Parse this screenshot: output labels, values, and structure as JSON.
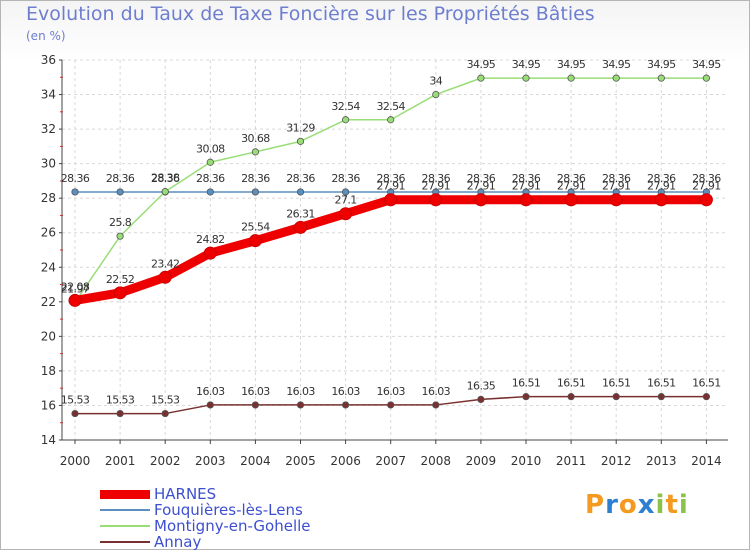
{
  "chart_data": {
    "type": "line",
    "title": "Evolution du Taux de Taxe Foncière sur les Propriétés Bâties",
    "subtitle": "(en %)",
    "x": [
      2000,
      2001,
      2002,
      2003,
      2004,
      2005,
      2006,
      2007,
      2008,
      2009,
      2010,
      2011,
      2012,
      2013,
      2014
    ],
    "ylim": [
      14,
      36
    ],
    "yticks": [
      14,
      16,
      18,
      20,
      22,
      24,
      26,
      28,
      30,
      32,
      34,
      36
    ],
    "series": [
      {
        "name": "HARNES",
        "color": "#ee0000",
        "values": [
          22.08,
          22.52,
          23.42,
          24.82,
          25.54,
          26.31,
          27.1,
          27.91,
          27.91,
          27.91,
          27.91,
          27.91,
          27.91,
          27.91,
          27.91
        ],
        "labels": [
          "22.08",
          "22.52",
          "23.42",
          "24.82",
          "25.54",
          "26.31",
          "27.1",
          "27.91",
          "27.91",
          "27.91",
          "27.91",
          "27.91",
          "27.91",
          "27.91",
          "27.91"
        ]
      },
      {
        "name": "Fouquières-lès-Lens",
        "color": "#5a8fbf",
        "values": [
          28.36,
          28.36,
          28.36,
          28.36,
          28.36,
          28.36,
          28.36,
          28.36,
          28.36,
          28.36,
          28.36,
          28.36,
          28.36,
          28.36,
          28.36
        ],
        "labels": [
          "28.36",
          "28.36",
          "28.36",
          "28.36",
          "28.36",
          "28.36",
          "28.36",
          "28.36",
          "28.36",
          "28.36",
          "28.36",
          "28.36",
          "28.36",
          "28.36",
          "28.36"
        ]
      },
      {
        "name": "Montigny-en-Gohelle",
        "color": "#99dd77",
        "values": [
          21.97,
          25.8,
          28.38,
          30.08,
          30.68,
          31.29,
          32.54,
          32.54,
          34,
          34.95,
          34.95,
          34.95,
          34.95,
          34.95,
          34.95
        ],
        "labels": [
          "21.97",
          "25.8",
          "28.38",
          "30.08",
          "30.68",
          "31.29",
          "32.54",
          "32.54",
          "34",
          "34.95",
          "34.95",
          "34.95",
          "34.95",
          "34.95",
          "34.95"
        ]
      },
      {
        "name": "Annay",
        "color": "#7a3030",
        "values": [
          15.53,
          15.53,
          15.53,
          16.03,
          16.03,
          16.03,
          16.03,
          16.03,
          16.03,
          16.35,
          16.51,
          16.51,
          16.51,
          16.51,
          16.51
        ],
        "labels": [
          "15.53",
          "15.53",
          "15.53",
          "16.03",
          "16.03",
          "16.03",
          "16.03",
          "16.03",
          "16.03",
          "16.35",
          "16.51",
          "16.51",
          "16.51",
          "16.51",
          "16.51"
        ]
      }
    ],
    "legend_position": "bottom-left",
    "grid": true
  },
  "logo": {
    "letters": [
      "P",
      "r",
      "o",
      "x",
      "i",
      "t",
      "i"
    ],
    "colors": [
      "#f39a1f",
      "#2f7fd0",
      "#f39a1f",
      "#2f7fd0",
      "#8bc34a",
      "#f39a1f",
      "#8bc34a"
    ]
  }
}
